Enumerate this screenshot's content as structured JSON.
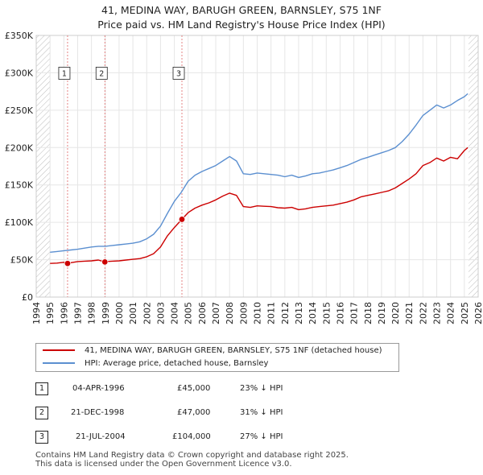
{
  "title_line1": "41, MEDINA WAY, BARUGH GREEN, BARNSLEY, S75 1NF",
  "title_line2": "Price paid vs. HM Land Registry's House Price Index (HPI)",
  "chart_data": {
    "type": "line",
    "xlim": [
      1994,
      2026
    ],
    "ylim": [
      0,
      350000
    ],
    "y_ticks": [
      0,
      50000,
      100000,
      150000,
      200000,
      250000,
      300000,
      350000
    ],
    "y_tick_labels": [
      "£0",
      "£50K",
      "£100K",
      "£150K",
      "£200K",
      "£250K",
      "£300K",
      "£350K"
    ],
    "x_ticks": [
      1994,
      1995,
      1996,
      1997,
      1998,
      1999,
      2000,
      2001,
      2002,
      2003,
      2004,
      2005,
      2006,
      2007,
      2008,
      2009,
      2010,
      2011,
      2012,
      2013,
      2014,
      2015,
      2016,
      2017,
      2018,
      2019,
      2020,
      2021,
      2022,
      2023,
      2024,
      2025,
      2026
    ],
    "series": [
      {
        "name": "41, MEDINA WAY, BARUGH GREEN, BARNSLEY, S75 1NF (detached house)",
        "color": "#cc0000",
        "x": [
          1995.0,
          1995.5,
          1996.0,
          1996.27,
          1996.5,
          1997.0,
          1997.5,
          1998.0,
          1998.5,
          1998.97,
          1999.0,
          1999.5,
          2000.0,
          2000.5,
          2001.0,
          2001.5,
          2002.0,
          2002.5,
          2003.0,
          2003.5,
          2004.0,
          2004.55,
          2005.0,
          2005.5,
          2006.0,
          2006.5,
          2007.0,
          2007.5,
          2008.0,
          2008.5,
          2009.0,
          2009.5,
          2010.0,
          2010.5,
          2011.0,
          2011.5,
          2012.0,
          2012.5,
          2013.0,
          2013.5,
          2014.0,
          2014.5,
          2015.0,
          2015.5,
          2016.0,
          2016.5,
          2017.0,
          2017.5,
          2018.0,
          2018.5,
          2019.0,
          2019.5,
          2020.0,
          2020.5,
          2021.0,
          2021.5,
          2022.0,
          2022.5,
          2023.0,
          2023.5,
          2024.0,
          2024.5,
          2025.0,
          2025.25
        ],
        "y": [
          45000,
          45500,
          46500,
          45000,
          46000,
          47500,
          48000,
          48500,
          49500,
          47000,
          47500,
          48000,
          48500,
          49500,
          50500,
          51500,
          54000,
          58000,
          67000,
          82000,
          93000,
          104000,
          113000,
          119000,
          123000,
          126000,
          130000,
          135000,
          139000,
          136000,
          121000,
          120000,
          122000,
          121500,
          121000,
          119500,
          119000,
          120000,
          117000,
          118000,
          120000,
          121000,
          122000,
          123000,
          125000,
          127000,
          130000,
          134000,
          136000,
          138000,
          140000,
          142000,
          146000,
          152000,
          158000,
          165000,
          176000,
          180000,
          186000,
          182000,
          187000,
          185000,
          196000,
          200000
        ]
      },
      {
        "name": "HPI: Average price, detached house, Barnsley",
        "color": "#5b8fd0",
        "x": [
          1995.0,
          1995.5,
          1996.0,
          1996.5,
          1997.0,
          1997.5,
          1998.0,
          1998.5,
          1999.0,
          1999.5,
          2000.0,
          2000.5,
          2001.0,
          2001.5,
          2002.0,
          2002.5,
          2003.0,
          2003.5,
          2004.0,
          2004.5,
          2005.0,
          2005.5,
          2006.0,
          2006.5,
          2007.0,
          2007.5,
          2008.0,
          2008.5,
          2009.0,
          2009.5,
          2010.0,
          2010.5,
          2011.0,
          2011.5,
          2012.0,
          2012.5,
          2013.0,
          2013.5,
          2014.0,
          2014.5,
          2015.0,
          2015.5,
          2016.0,
          2016.5,
          2017.0,
          2017.5,
          2018.0,
          2018.5,
          2019.0,
          2019.5,
          2020.0,
          2020.5,
          2021.0,
          2021.5,
          2022.0,
          2022.5,
          2023.0,
          2023.5,
          2024.0,
          2024.5,
          2025.0,
          2025.25
        ],
        "y": [
          60000,
          61000,
          62000,
          63000,
          64000,
          65500,
          67000,
          68000,
          68000,
          69000,
          70000,
          71000,
          72000,
          74000,
          78000,
          84000,
          95000,
          112000,
          128000,
          140000,
          155000,
          163000,
          168000,
          172000,
          176000,
          182000,
          188000,
          182000,
          165000,
          164000,
          166000,
          165000,
          164000,
          163000,
          161000,
          163000,
          160000,
          162000,
          165000,
          166000,
          168000,
          170000,
          173000,
          176000,
          180000,
          184000,
          187000,
          190000,
          193000,
          196000,
          200000,
          208000,
          218000,
          230000,
          243000,
          250000,
          257000,
          253000,
          257000,
          263000,
          268000,
          272000
        ]
      }
    ],
    "sales": [
      {
        "label": "1",
        "date": "04-APR-1996",
        "year": 1996.27,
        "price": "£45,000",
        "value": 45000,
        "delta": "23% ↓ HPI"
      },
      {
        "label": "2",
        "date": "21-DEC-1998",
        "year": 1998.97,
        "price": "£47,000",
        "value": 47000,
        "delta": "31% ↓ HPI"
      },
      {
        "label": "3",
        "date": "21-JUL-2004",
        "year": 2004.55,
        "price": "£104,000",
        "value": 104000,
        "delta": "27% ↓ HPI"
      }
    ],
    "hatched_regions": [
      [
        1994,
        1995
      ],
      [
        2025.3,
        2026
      ]
    ],
    "grid": true
  },
  "legend": {
    "red_label": "41, MEDINA WAY, BARUGH GREEN, BARNSLEY, S75 1NF (detached house)",
    "blue_label": "HPI: Average price, detached house, Barnsley"
  },
  "footer_line1": "Contains HM Land Registry data © Crown copyright and database right 2025.",
  "footer_line2": "This data is licensed under the Open Government Licence v3.0."
}
